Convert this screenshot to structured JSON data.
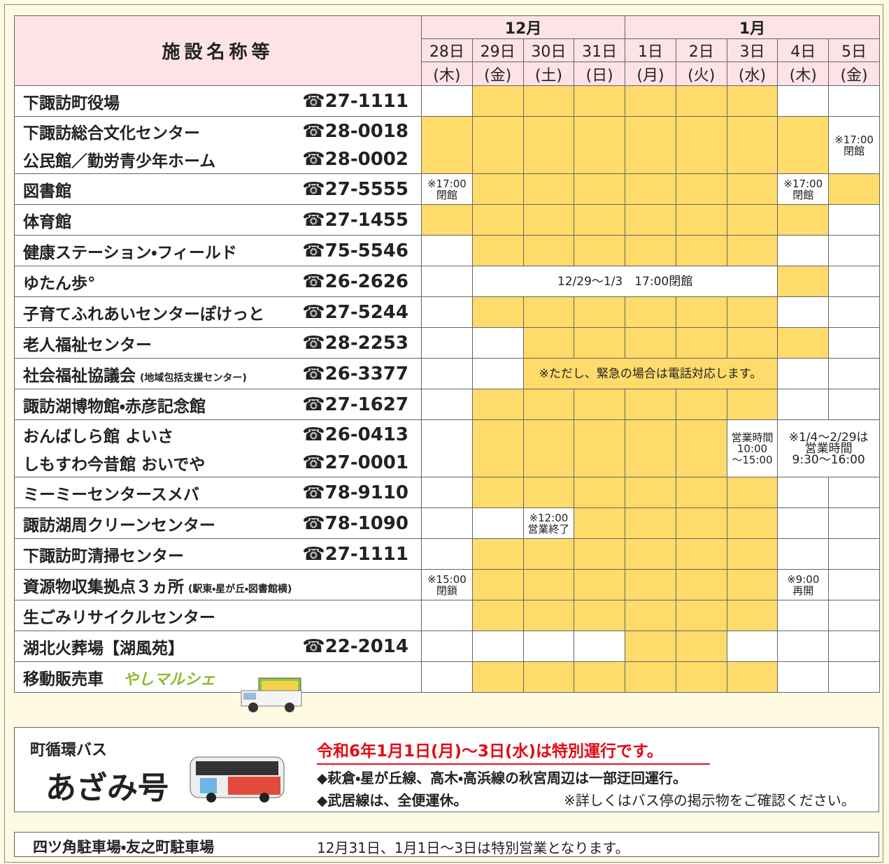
{
  "header": {
    "title": "施設名称等",
    "months": [
      {
        "label": "12月",
        "span": 4
      },
      {
        "label": "1月",
        "span": 5
      }
    ],
    "days": [
      {
        "day": "28日",
        "weekday": "(木)"
      },
      {
        "day": "29日",
        "weekday": "(金)"
      },
      {
        "day": "30日",
        "weekday": "(土)"
      },
      {
        "day": "31日",
        "weekday": "(日)"
      },
      {
        "day": "1日",
        "weekday": "(月)"
      },
      {
        "day": "2日",
        "weekday": "(火)"
      },
      {
        "day": "3日",
        "weekday": "(水)"
      },
      {
        "day": "4日",
        "weekday": "(木)"
      },
      {
        "day": "5日",
        "weekday": "(金)"
      }
    ]
  },
  "rows": [
    {
      "lines": [
        {
          "name": "下諏訪町役場",
          "phone": "☎27-1111"
        }
      ],
      "cells": [
        {
          "color": "#ffffff"
        },
        {
          "color": "#fedb6b"
        },
        {
          "color": "#fedb6b"
        },
        {
          "color": "#fedb6b"
        },
        {
          "color": "#fedb6b"
        },
        {
          "color": "#fedb6b"
        },
        {
          "color": "#fedb6b"
        },
        {
          "color": "#ffffff"
        },
        {
          "color": "#ffffff"
        }
      ]
    },
    {
      "lines": [
        {
          "name": "下諏訪総合文化センター",
          "phone": "☎28-0018"
        },
        {
          "name": "公民館／勤労青少年ホーム",
          "phone": "☎28-0002"
        }
      ],
      "cells": [
        {
          "color": "#fedb6b"
        },
        {
          "color": "#fedb6b"
        },
        {
          "color": "#fedb6b"
        },
        {
          "color": "#fedb6b"
        },
        {
          "color": "#fedb6b"
        },
        {
          "color": "#fedb6b"
        },
        {
          "color": "#fedb6b"
        },
        {
          "color": "#fedb6b"
        },
        {
          "color": "#ffffff",
          "note": [
            "※17:00",
            "閉館"
          ]
        }
      ]
    },
    {
      "lines": [
        {
          "name": "図書館",
          "phone": "☎27-5555"
        }
      ],
      "cells": [
        {
          "color": "#ffffff",
          "note": [
            "※17:00",
            "閉館"
          ]
        },
        {
          "color": "#fedb6b"
        },
        {
          "color": "#fedb6b"
        },
        {
          "color": "#fedb6b"
        },
        {
          "color": "#fedb6b"
        },
        {
          "color": "#fedb6b"
        },
        {
          "color": "#fedb6b"
        },
        {
          "color": "#ffffff",
          "note": [
            "※17:00",
            "閉館"
          ]
        },
        {
          "color": "#fedb6b"
        }
      ]
    },
    {
      "lines": [
        {
          "name": "体育館",
          "phone": "☎27-1455"
        }
      ],
      "cells": [
        {
          "color": "#fedb6b"
        },
        {
          "color": "#fedb6b"
        },
        {
          "color": "#fedb6b"
        },
        {
          "color": "#fedb6b"
        },
        {
          "color": "#fedb6b"
        },
        {
          "color": "#fedb6b"
        },
        {
          "color": "#fedb6b"
        },
        {
          "color": "#fedb6b"
        },
        {
          "color": "#ffffff"
        }
      ]
    },
    {
      "lines": [
        {
          "name": "健康ステーション・フィールド",
          "phone": "☎75-5546"
        }
      ],
      "cells": [
        {
          "color": "#ffffff"
        },
        {
          "color": "#fedb6b"
        },
        {
          "color": "#fedb6b"
        },
        {
          "color": "#fedb6b"
        },
        {
          "color": "#fedb6b"
        },
        {
          "color": "#fedb6b"
        },
        {
          "color": "#fedb6b"
        },
        {
          "color": "#ffffff"
        },
        {
          "color": "#ffffff"
        }
      ]
    },
    {
      "lines": [
        {
          "name": "ゆたん歩°",
          "phone": "☎26-2626"
        }
      ],
      "cells": [
        {
          "color": "#ffffff"
        },
        {
          "color": "#ffffff",
          "span": 6,
          "note": [
            "12/29〜1/3　17:00閉館"
          ]
        },
        {
          "color": "#fedb6b"
        },
        {
          "color": "#ffffff"
        }
      ]
    },
    {
      "lines": [
        {
          "name": "子育てふれあいセンターぽけっと",
          "phone": "☎27-5244"
        }
      ],
      "cells": [
        {
          "color": "#ffffff"
        },
        {
          "color": "#fedb6b"
        },
        {
          "color": "#fedb6b"
        },
        {
          "color": "#fedb6b"
        },
        {
          "color": "#fedb6b"
        },
        {
          "color": "#fedb6b"
        },
        {
          "color": "#fedb6b"
        },
        {
          "color": "#ffffff"
        },
        {
          "color": "#ffffff"
        }
      ]
    },
    {
      "lines": [
        {
          "name": "老人福祉センター",
          "phone": "☎28-2253"
        }
      ],
      "cells": [
        {
          "color": "#ffffff"
        },
        {
          "color": "#ffffff"
        },
        {
          "color": "#fedb6b"
        },
        {
          "color": "#fedb6b"
        },
        {
          "color": "#fedb6b"
        },
        {
          "color": "#fedb6b"
        },
        {
          "color": "#fedb6b"
        },
        {
          "color": "#fedb6b"
        },
        {
          "color": "#ffffff"
        }
      ]
    },
    {
      "lines": [
        {
          "name": "社会福祉協議会",
          "sub": "(地域包括支援センター)",
          "phone": "☎26-3377"
        }
      ],
      "cells": [
        {
          "color": "#ffffff"
        },
        {
          "color": "#ffffff"
        },
        {
          "color": "#fedb6b",
          "span": 5,
          "note": [
            "※ただし、緊急の場合は電話対応します。"
          ]
        },
        {
          "color": "#ffffff"
        },
        {
          "color": "#ffffff"
        }
      ]
    },
    {
      "lines": [
        {
          "name": "諏訪湖博物館・赤彦記念館",
          "phone": "☎27-1627"
        }
      ],
      "cells": [
        {
          "color": "#ffffff"
        },
        {
          "color": "#fedb6b"
        },
        {
          "color": "#fedb6b"
        },
        {
          "color": "#fedb6b"
        },
        {
          "color": "#fedb6b"
        },
        {
          "color": "#fedb6b"
        },
        {
          "color": "#fedb6b"
        },
        {
          "color": "#ffffff"
        },
        {
          "color": "#ffffff"
        }
      ]
    },
    {
      "lines": [
        {
          "name": "おんばしら館 よいさ",
          "phone": "☎26-0413"
        },
        {
          "name": "しもすわ今昔館 おいでや",
          "phone": "☎27-0001"
        }
      ],
      "cells": [
        {
          "color": "#ffffff"
        },
        {
          "color": "#fedb6b"
        },
        {
          "color": "#fedb6b"
        },
        {
          "color": "#fedb6b"
        },
        {
          "color": "#fedb6b"
        },
        {
          "color": "#fedb6b"
        },
        {
          "color": "#ffffff",
          "note": [
            "営業時間",
            "10:00",
            "〜15:00"
          ]
        },
        {
          "color": "#ffffff",
          "span": 2,
          "note": [
            "※1/4〜2/29は",
            "営業時間",
            "9:30〜16:00"
          ]
        }
      ]
    },
    {
      "lines": [
        {
          "name": "ミーミーセンタースメバ",
          "phone": "☎78-9110"
        }
      ],
      "cells": [
        {
          "color": "#ffffff"
        },
        {
          "color": "#fedb6b"
        },
        {
          "color": "#fedb6b"
        },
        {
          "color": "#fedb6b"
        },
        {
          "color": "#fedb6b"
        },
        {
          "color": "#fedb6b"
        },
        {
          "color": "#fedb6b"
        },
        {
          "color": "#ffffff"
        },
        {
          "color": "#ffffff"
        }
      ]
    },
    {
      "lines": [
        {
          "name": "諏訪湖周クリーンセンター",
          "phone": "☎78-1090"
        }
      ],
      "cells": [
        {
          "color": "#ffffff"
        },
        {
          "color": "#ffffff"
        },
        {
          "color": "#ffffff",
          "note": [
            "※12:00",
            "営業終了"
          ]
        },
        {
          "color": "#fedb6b"
        },
        {
          "color": "#fedb6b"
        },
        {
          "color": "#fedb6b"
        },
        {
          "color": "#fedb6b"
        },
        {
          "color": "#ffffff"
        },
        {
          "color": "#ffffff"
        }
      ]
    },
    {
      "lines": [
        {
          "name": "下諏訪町清掃センター",
          "phone": "☎27-1111"
        }
      ],
      "cells": [
        {
          "color": "#ffffff"
        },
        {
          "color": "#fedb6b"
        },
        {
          "color": "#fedb6b"
        },
        {
          "color": "#fedb6b"
        },
        {
          "color": "#fedb6b"
        },
        {
          "color": "#fedb6b"
        },
        {
          "color": "#fedb6b"
        },
        {
          "color": "#ffffff"
        },
        {
          "color": "#ffffff"
        }
      ]
    },
    {
      "lines": [
        {
          "name": "資源物収集拠点３ヵ所",
          "sub": "(駅東・星が丘・図書館横)"
        }
      ],
      "cells": [
        {
          "color": "#ffffff",
          "note": [
            "※15:00",
            "閉鎖"
          ]
        },
        {
          "color": "#fedb6b"
        },
        {
          "color": "#fedb6b"
        },
        {
          "color": "#fedb6b"
        },
        {
          "color": "#fedb6b"
        },
        {
          "color": "#fedb6b"
        },
        {
          "color": "#fedb6b"
        },
        {
          "color": "#ffffff",
          "note": [
            "※9:00",
            "再開"
          ]
        },
        {
          "color": "#ffffff"
        }
      ]
    },
    {
      "lines": [
        {
          "name": "生ごみリサイクルセンター"
        }
      ],
      "cells": [
        {
          "color": "#ffffff"
        },
        {
          "color": "#fedb6b"
        },
        {
          "color": "#fedb6b"
        },
        {
          "color": "#fedb6b"
        },
        {
          "color": "#fedb6b"
        },
        {
          "color": "#fedb6b"
        },
        {
          "color": "#fedb6b"
        },
        {
          "color": "#ffffff"
        },
        {
          "color": "#ffffff"
        }
      ]
    },
    {
      "lines": [
        {
          "name": "湖北火葬場【湖風苑】",
          "phone": "☎22-2014"
        }
      ],
      "cells": [
        {
          "color": "#ffffff"
        },
        {
          "color": "#ffffff"
        },
        {
          "color": "#ffffff"
        },
        {
          "color": "#ffffff"
        },
        {
          "color": "#fedb6b"
        },
        {
          "color": "#fedb6b"
        },
        {
          "color": "#ffffff"
        },
        {
          "color": "#ffffff"
        },
        {
          "color": "#ffffff"
        }
      ]
    },
    {
      "lines": [
        {
          "name": "移動販売車",
          "logo": "やしマルシェ"
        }
      ],
      "cells": [
        {
          "color": "#ffffff"
        },
        {
          "color": "#fedb6b"
        },
        {
          "color": "#fedb6b"
        },
        {
          "color": "#fedb6b"
        },
        {
          "color": "#fedb6b"
        },
        {
          "color": "#fedb6b"
        },
        {
          "color": "#fedb6b"
        },
        {
          "color": "#ffffff"
        },
        {
          "color": "#ffffff"
        }
      ]
    }
  ],
  "bus": {
    "label": "町循環バス",
    "logo": "あざみ号",
    "headline": "令和6年1月1日(月)〜3日(水)は特別運行です。",
    "lines": [
      "◆萩倉・星が丘線、高木・高浜線の秋宮周辺は一部迂回運行。",
      "◆武居線は、全便運休。"
    ],
    "note": "※詳しくはバス停の掲示物をご確認ください。"
  },
  "parking": {
    "label": "四ツ角駐車場・友之町駐車場",
    "text": "12月31日、1月1日〜3日は特別営業となります。"
  }
}
